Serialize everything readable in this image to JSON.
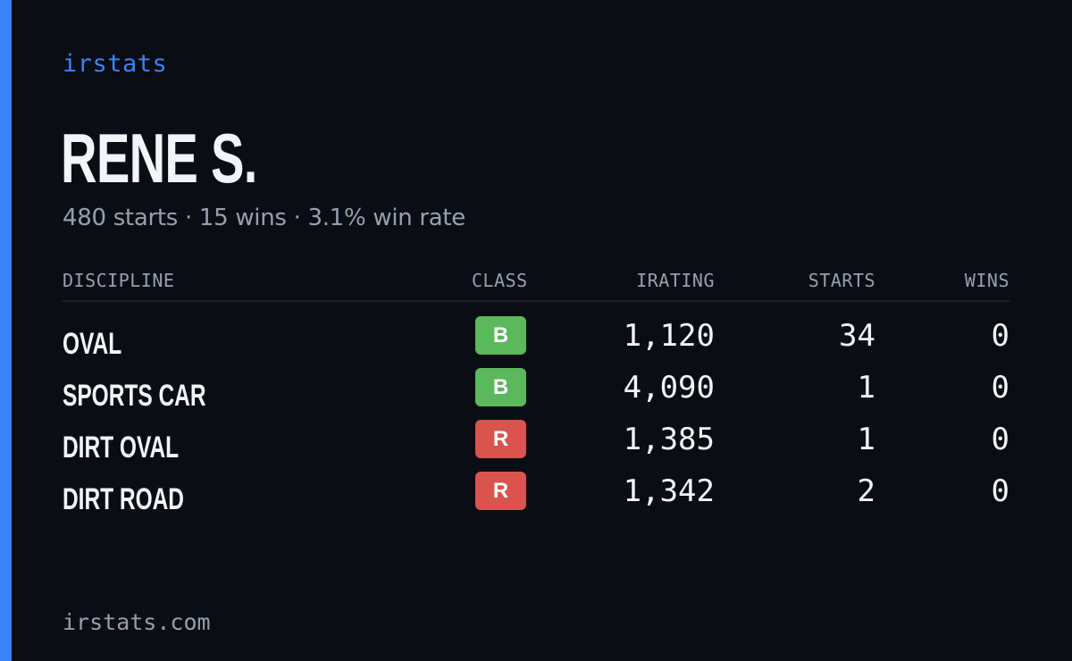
{
  "brand": "irstats",
  "driver_name": "RENE S.",
  "summary": "480 starts · 15 wins · 3.1% win rate",
  "table": {
    "headers": {
      "discipline": "DISCIPLINE",
      "class": "CLASS",
      "irating": "IRATING",
      "starts": "STARTS",
      "wins": "WINS"
    },
    "rows": [
      {
        "discipline": "OVAL",
        "class": "B",
        "irating": "1,120",
        "starts": "34",
        "wins": "0"
      },
      {
        "discipline": "SPORTS CAR",
        "class": "B",
        "irating": "4,090",
        "starts": "1",
        "wins": "0"
      },
      {
        "discipline": "DIRT OVAL",
        "class": "R",
        "irating": "1,385",
        "starts": "1",
        "wins": "0"
      },
      {
        "discipline": "DIRT ROAD",
        "class": "R",
        "irating": "1,342",
        "starts": "2",
        "wins": "0"
      }
    ]
  },
  "footer": "irstats.com",
  "colors": {
    "accent": "#3b82f6",
    "class_B": "#5cb85c",
    "class_R": "#d9534f",
    "background": "#0a0d14"
  }
}
